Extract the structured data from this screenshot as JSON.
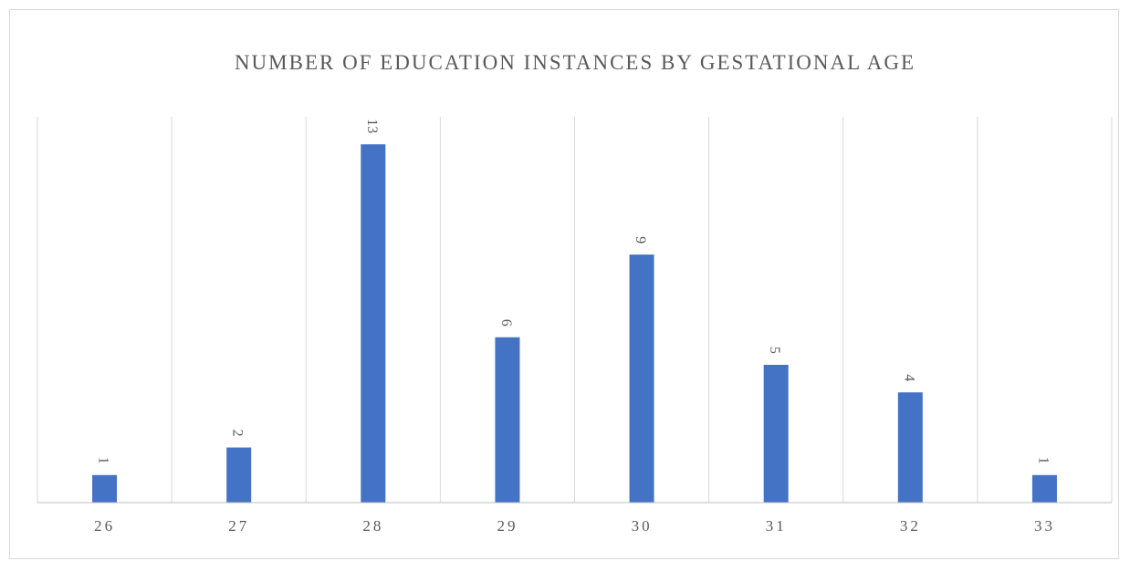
{
  "chart_data": {
    "type": "bar",
    "title": "NUMBER OF EDUCATION INSTANCES BY GESTATIONAL AGE",
    "categories": [
      "26",
      "27",
      "28",
      "29",
      "30",
      "31",
      "32",
      "33"
    ],
    "values": [
      1,
      2,
      13,
      6,
      9,
      5,
      4,
      1
    ],
    "xlabel": "",
    "ylabel": "",
    "ylim": [
      0,
      14
    ],
    "grid": "vertical separators between categories",
    "legend": "none",
    "data_labels": true,
    "bar_color": "#4472c4",
    "axis_color": "#bfbfbf",
    "grid_color": "#d9d9d9",
    "text_color": "#595959"
  }
}
